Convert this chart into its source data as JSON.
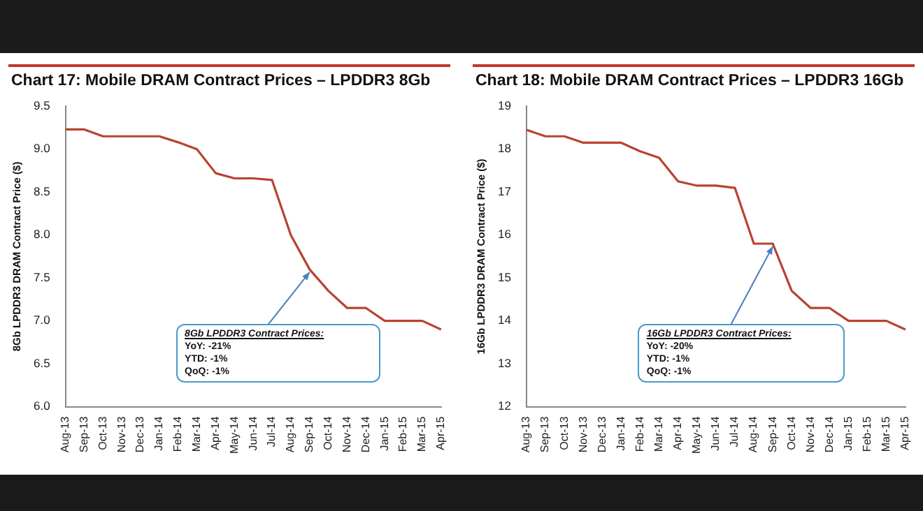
{
  "chart_data": [
    {
      "type": "line",
      "title": "Chart 17: Mobile DRAM Contract Prices – LPDDR3 8Gb",
      "ylabel": "8Gb LPDDR3 DRAM Contract Price ($)",
      "categories": [
        "Aug-13",
        "Sep-13",
        "Oct-13",
        "Nov-13",
        "Dec-13",
        "Jan-14",
        "Feb-14",
        "Mar-14",
        "Apr-14",
        "May-14",
        "Jun-14",
        "Jul-14",
        "Aug-14",
        "Sep-14",
        "Oct-14",
        "Nov-14",
        "Dec-14",
        "Jan-15",
        "Feb-15",
        "Mar-15",
        "Apr-15"
      ],
      "values": [
        9.23,
        9.23,
        9.15,
        9.15,
        9.15,
        9.15,
        9.08,
        9.0,
        8.72,
        8.66,
        8.66,
        8.64,
        8.0,
        7.6,
        7.35,
        7.15,
        7.15,
        7.0,
        7.0,
        7.0,
        6.9
      ],
      "color": "#b8432f",
      "ylim": [
        6.0,
        9.5
      ],
      "yticks": [
        {
          "value": 6,
          "label": "6.0"
        },
        {
          "value": 6.5,
          "label": "6.5"
        },
        {
          "value": 7,
          "label": "7.0"
        },
        {
          "value": 7.5,
          "label": "7.5"
        },
        {
          "value": 8,
          "label": "8.0"
        },
        {
          "value": 8.5,
          "label": "8.5"
        },
        {
          "value": 9,
          "label": "9.0"
        },
        {
          "value": 9.5,
          "label": "9.5"
        }
      ],
      "grid": false,
      "legend": false,
      "marker": "none",
      "annotations": [
        {
          "text": "8Gb LPDDR3 Contract Prices:",
          "x": "Sep-14",
          "y": 7.6
        },
        "YoY: -21%",
        "YTD: -1%",
        "QoQ: -1%"
      ]
    },
    {
      "type": "line",
      "title": "Chart 18: Mobile DRAM Contract Prices – LPDDR3 16Gb",
      "ylabel": "16Gb LPDDR3 DRAM Contract Price ($)",
      "categories": [
        "Aug-13",
        "Sep-13",
        "Oct-13",
        "Nov-13",
        "Dec-13",
        "Jan-14",
        "Feb-14",
        "Mar-14",
        "Apr-14",
        "May-14",
        "Jun-14",
        "Jul-14",
        "Aug-14",
        "Sep-14",
        "Oct-14",
        "Nov-14",
        "Dec-14",
        "Jan-15",
        "Feb-15",
        "Mar-15",
        "Apr-15"
      ],
      "values": [
        18.45,
        18.3,
        18.3,
        18.15,
        18.15,
        18.15,
        17.95,
        17.8,
        17.25,
        17.15,
        17.15,
        17.1,
        15.8,
        15.8,
        14.7,
        14.3,
        14.3,
        14.0,
        14.0,
        14.0,
        13.8
      ],
      "color": "#b8432f",
      "ylim": [
        12,
        19
      ],
      "yticks": [
        12,
        13,
        14,
        15,
        16,
        17,
        18,
        19
      ],
      "grid": false,
      "legend": false,
      "marker": "none",
      "annotations": [
        {
          "text": "16Gb LPDDR3 Contract Prices:",
          "x": "Sep-14",
          "y": 15.8
        },
        "YoY: -20%",
        "YTD: -1%",
        "QoQ: -1%"
      ]
    }
  ]
}
